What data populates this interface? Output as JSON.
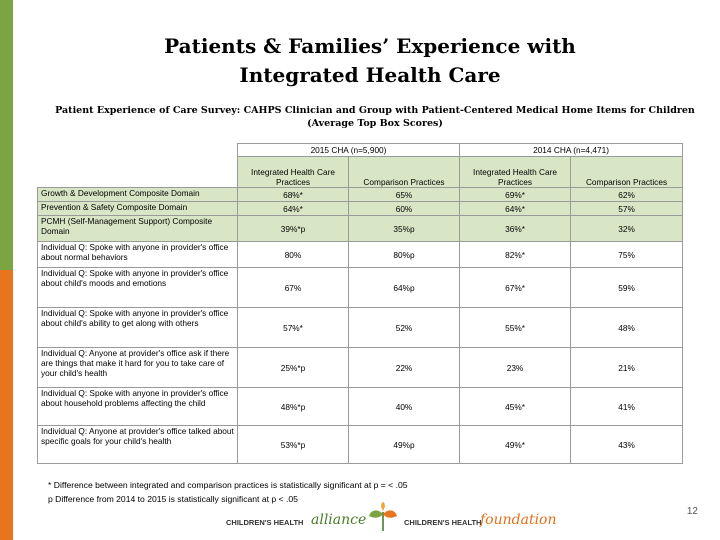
{
  "colors": {
    "side_green": "#7aa542",
    "side_orange": "#e8741e",
    "header_fill": "#d9e6c6",
    "brand_green": "#4a7c2c",
    "brand_orange": "#e0701e"
  },
  "title": {
    "line1": "Patients & Families’ Experience with",
    "line2": "Integrated Health Care"
  },
  "subtitle": {
    "line1": "Patient Experience of Care Survey: CAHPS Clinician and Group with Patient-Centered Medical Home Items for Children",
    "line2": "(Average Top Box Scores)"
  },
  "table": {
    "groups": [
      "2015 CHA (n=5,900)",
      "2014 CHA (n=4,471)"
    ],
    "columns": [
      "Integrated Health Care Practices",
      "Comparison Practices",
      "Integrated Health Care Practices",
      "Comparison Practices"
    ],
    "rows": [
      {
        "label": "Growth & Development Composite Domain",
        "values": [
          "68%*",
          "65%",
          "69%*",
          "62%"
        ],
        "shaded": true
      },
      {
        "label": "Prevention & Safety Composite Domain",
        "values": [
          "64%*",
          "60%",
          "64%*",
          "57%"
        ],
        "shaded": true
      },
      {
        "label": "PCMH (Self-Management Support) Composite Domain",
        "values": [
          "39%*p",
          "35%p",
          "36%*",
          "32%"
        ],
        "shaded": true
      },
      {
        "label": "Individual Q: Spoke with anyone in provider's office about normal behaviors",
        "values": [
          "80%",
          "80%p",
          "82%*",
          "75%"
        ],
        "shaded": false
      },
      {
        "label": "Individual Q: Spoke with anyone in provider's office about child's moods and emotions",
        "values": [
          "67%",
          "64%p",
          "67%*",
          "59%"
        ],
        "shaded": false
      },
      {
        "label": "Individual Q: Spoke with anyone in provider's office about child's ability to get along with others",
        "values": [
          "57%*",
          "52%",
          "55%*",
          "48%"
        ],
        "shaded": false
      },
      {
        "label": "Individual Q: Anyone at provider's office ask if there are things that make it hard for you to take care of your child's health",
        "values": [
          "25%*p",
          "22%",
          "23%",
          "21%"
        ],
        "shaded": false
      },
      {
        "label": "Individual Q: Spoke with anyone in provider's office about household problems affecting the child",
        "values": [
          "48%*p",
          "40%",
          "45%*",
          "41%"
        ],
        "shaded": false
      },
      {
        "label": "Individual Q: Anyone at provider's office talked about specific goals for your child's health",
        "values": [
          "53%*p",
          "49%p",
          "49%*",
          "43%"
        ],
        "shaded": false
      }
    ]
  },
  "notes": {
    "asterisk": "* Difference between integrated and comparison practices is statistically significant at p = < .05",
    "p": "p Difference from 2014 to 2015 is statistically significant at p < .05"
  },
  "footer": {
    "org_left": "CHILDREN'S HEALTH",
    "org_left_word": "alliance",
    "org_right": "CHILDREN'S HEALTH",
    "org_right_word": "foundation"
  },
  "page_number": "12"
}
